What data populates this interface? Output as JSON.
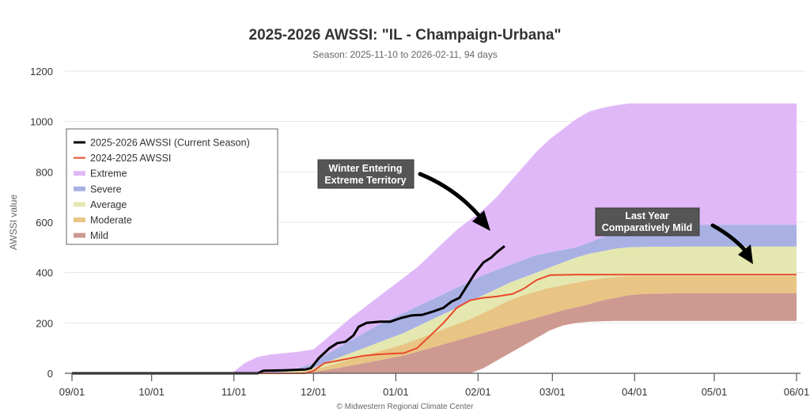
{
  "chart_data": {
    "type": "area",
    "title": "2025-2026 AWSSI: \"IL - Champaign-Urbana\"",
    "subtitle": "Season: 2025-11-10 to 2026-02-11, 94 days",
    "xlabel": "",
    "ylabel": "AWSSI value",
    "credit": "© Midwestern Regional Climate Center",
    "x_ticks": [
      "09/01",
      "10/01",
      "11/01",
      "12/01",
      "01/01",
      "02/01",
      "03/01",
      "04/01",
      "05/01",
      "06/01"
    ],
    "x_tick_days": [
      0,
      30,
      61,
      91,
      122,
      153,
      181,
      212,
      242,
      273
    ],
    "y_ticks": [
      0,
      200,
      400,
      600,
      800,
      1000,
      1200
    ],
    "ylim": [
      0,
      1200
    ],
    "xlim_days": [
      0,
      273
    ],
    "grid": true,
    "legend_position": "left",
    "legend": [
      {
        "name": "2025-2026 AWSSI (Current Season)",
        "kind": "line",
        "color": "#000000"
      },
      {
        "name": "2024-2025 AWSSI",
        "kind": "line",
        "color": "#e8492b"
      },
      {
        "name": "Extreme",
        "kind": "band",
        "color": "#e0b8f8"
      },
      {
        "name": "Severe",
        "kind": "band",
        "color": "#a9b1e4"
      },
      {
        "name": "Average",
        "kind": "band",
        "color": "#e4e8b0"
      },
      {
        "name": "Moderate",
        "kind": "band",
        "color": "#e8c584"
      },
      {
        "name": "Mild",
        "kind": "band",
        "color": "#cd9991"
      }
    ],
    "bands": {
      "x_days": [
        0,
        60,
        62,
        65,
        70,
        75,
        80,
        85,
        91,
        95,
        100,
        105,
        110,
        115,
        120,
        125,
        130,
        135,
        140,
        145,
        150,
        155,
        160,
        165,
        170,
        175,
        180,
        185,
        190,
        195,
        200,
        205,
        210,
        215,
        230,
        273
      ],
      "extreme_top": [
        0,
        0,
        15,
        40,
        65,
        75,
        80,
        85,
        95,
        130,
        175,
        220,
        260,
        300,
        340,
        380,
        420,
        470,
        520,
        570,
        610,
        650,
        700,
        760,
        820,
        880,
        930,
        970,
        1010,
        1040,
        1055,
        1065,
        1072,
        1072,
        1072,
        1072
      ],
      "severe_top": [
        0,
        0,
        0,
        0,
        2,
        5,
        10,
        20,
        40,
        70,
        100,
        130,
        160,
        190,
        215,
        240,
        265,
        290,
        315,
        340,
        365,
        390,
        410,
        430,
        450,
        470,
        480,
        490,
        500,
        520,
        540,
        560,
        575,
        585,
        590,
        590
      ],
      "average_top": [
        0,
        0,
        0,
        0,
        0,
        2,
        5,
        10,
        20,
        40,
        60,
        80,
        100,
        120,
        140,
        160,
        185,
        210,
        235,
        260,
        285,
        310,
        335,
        360,
        380,
        400,
        420,
        440,
        460,
        475,
        485,
        495,
        500,
        502,
        503,
        503
      ],
      "moderate_top": [
        0,
        0,
        0,
        0,
        0,
        0,
        2,
        5,
        12,
        25,
        40,
        55,
        70,
        85,
        100,
        115,
        135,
        155,
        175,
        195,
        215,
        240,
        265,
        290,
        310,
        325,
        340,
        350,
        360,
        370,
        378,
        383,
        385,
        385,
        385,
        385
      ],
      "mild_top": [
        0,
        0,
        0,
        0,
        0,
        0,
        0,
        2,
        5,
        12,
        20,
        30,
        40,
        50,
        60,
        70,
        85,
        100,
        115,
        130,
        145,
        160,
        175,
        190,
        205,
        220,
        235,
        250,
        262,
        275,
        290,
        300,
        310,
        315,
        318,
        318
      ],
      "mild_bottom": [
        0,
        0,
        0,
        0,
        0,
        0,
        0,
        0,
        0,
        0,
        0,
        0,
        0,
        0,
        0,
        0,
        0,
        0,
        0,
        0,
        0,
        20,
        50,
        80,
        110,
        140,
        170,
        190,
        200,
        205,
        207,
        208,
        208,
        208,
        208,
        208
      ]
    },
    "series": [
      {
        "name": "2025-2026 AWSSI (Current Season)",
        "color": "#000000",
        "x_days": [
          0,
          60,
          70,
          72,
          80,
          88,
          90,
          93,
          97,
          100,
          103,
          106,
          108,
          111,
          116,
          120,
          124,
          128,
          132,
          136,
          140,
          143,
          146,
          149,
          152,
          155,
          158,
          160,
          163
        ],
        "values": [
          0,
          0,
          0,
          10,
          12,
          15,
          20,
          60,
          100,
          120,
          125,
          150,
          185,
          200,
          205,
          205,
          220,
          230,
          232,
          245,
          260,
          285,
          300,
          350,
          400,
          440,
          460,
          480,
          505
        ]
      },
      {
        "name": "2024-2025 AWSSI",
        "color": "#e8492b",
        "x_days": [
          0,
          88,
          91,
          95,
          100,
          105,
          110,
          115,
          120,
          125,
          130,
          135,
          140,
          145,
          150,
          155,
          160,
          163,
          166,
          170,
          175,
          180,
          190,
          273
        ],
        "values": [
          0,
          0,
          10,
          40,
          50,
          60,
          70,
          75,
          78,
          80,
          100,
          150,
          200,
          260,
          290,
          300,
          305,
          310,
          315,
          335,
          370,
          390,
          392,
          392
        ]
      }
    ],
    "annotations": [
      {
        "text_line1": "Winter Entering",
        "text_line2": "Extreme Territory"
      },
      {
        "text_line1": "Last Year",
        "text_line2": "Comparatively Mild"
      }
    ]
  }
}
